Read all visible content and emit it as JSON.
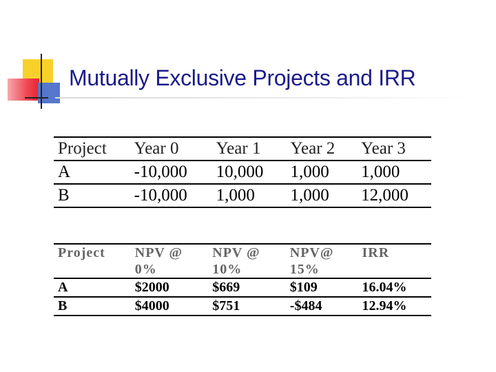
{
  "slide": {
    "title": "Mutually Exclusive Projects and IRR"
  },
  "cashflow_table": {
    "headers": [
      "Project",
      "Year 0",
      "Year 1",
      "Year 2",
      "Year 3"
    ],
    "rows": [
      [
        "A",
        "-10,000",
        "10,000",
        "1,000",
        "1,000"
      ],
      [
        "B",
        "-10,000",
        "1,000",
        "1,000",
        "12,000"
      ]
    ]
  },
  "npv_table": {
    "headers": [
      {
        "line1": "Project",
        "line2": ""
      },
      {
        "line1": "NPV @",
        "line2": "0%"
      },
      {
        "line1": "NPV @",
        "line2": "10%"
      },
      {
        "line1": "NPV@",
        "line2": "15%"
      },
      {
        "line1": "IRR",
        "line2": ""
      }
    ],
    "rows": [
      [
        "A",
        "$2000",
        "$669",
        "$109",
        "16.04%"
      ],
      [
        "B",
        "$4000",
        "$751",
        "-$484",
        "12.94%"
      ]
    ]
  },
  "colors": {
    "title": "#1b1b8a",
    "logo_yellow": "#f7d12a",
    "logo_red": "#e8222e",
    "logo_blue": "#5577cc"
  }
}
